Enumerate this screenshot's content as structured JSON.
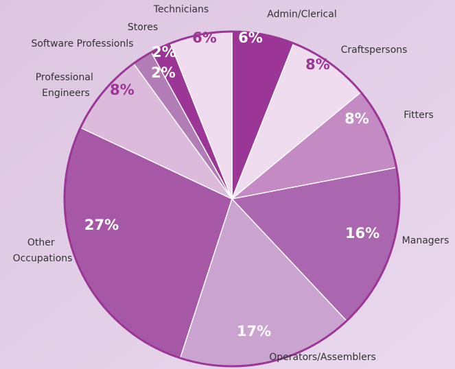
{
  "chart_data": {
    "type": "pie",
    "categories": [
      "Admin/Clerical",
      "Craftspersons",
      "Fitters",
      "Managers",
      "Operators/Assemblers",
      "Other Occupations",
      "Professional Engineers",
      "Software Professionls",
      "Stores",
      "Technicians"
    ],
    "values": [
      6,
      8,
      8,
      16,
      17,
      27,
      8,
      2,
      2,
      6
    ],
    "value_labels": [
      "6%",
      "8%",
      "8%",
      "16%",
      "17%",
      "27%",
      "8%",
      "2%",
      "2%",
      "6%"
    ],
    "colors": [
      "#9b3596",
      "#efdcef",
      "#c48ac4",
      "#aa66ae",
      "#caa3d0",
      "#a658a6",
      "#dcbadc",
      "#b27cb6",
      "#9b3596",
      "#efdcef"
    ],
    "label_colors": [
      "#ffffff",
      "#9b3596",
      "#ffffff",
      "#ffffff",
      "#ffffff",
      "#ffffff",
      "#9b3596",
      "#ffffff",
      "#ffffff",
      "#9b3596"
    ]
  }
}
